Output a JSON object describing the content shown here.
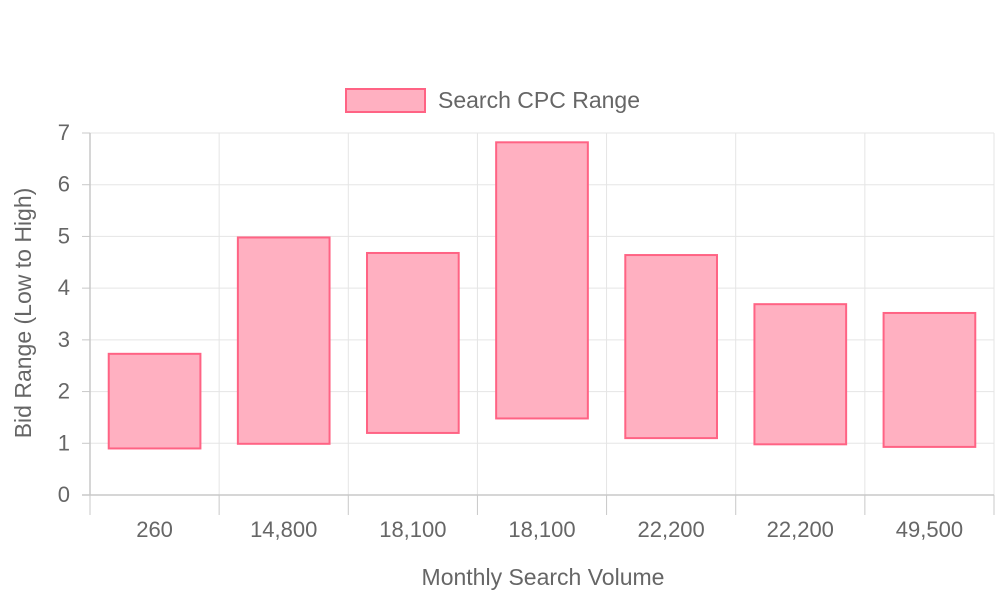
{
  "chart_data": {
    "type": "bar",
    "orientation": "vertical",
    "floating_bars": true,
    "categories": [
      "260",
      "14,800",
      "18,100",
      "18,100",
      "22,200",
      "22,200",
      "49,500"
    ],
    "series": [
      {
        "name": "Search CPC Range",
        "ranges": [
          [
            0.9,
            2.73
          ],
          [
            0.99,
            4.98
          ],
          [
            1.2,
            4.68
          ],
          [
            1.48,
            6.82
          ],
          [
            1.1,
            4.64
          ],
          [
            0.98,
            3.69
          ],
          [
            0.93,
            3.52
          ]
        ],
        "fill": "#ffb0c1",
        "stroke": "#ff6384"
      }
    ],
    "xlabel": "Monthly Search Volume",
    "ylabel": "Bid Range (Low to High)",
    "ylim": [
      0,
      7
    ],
    "yticks": [
      "0",
      "1",
      "2",
      "3",
      "4",
      "5",
      "6",
      "7"
    ],
    "grid": true,
    "legend": "top-center",
    "colors": {
      "grid": "#e5e5e5",
      "axis": "#c8c8c8",
      "text": "#666666"
    }
  }
}
